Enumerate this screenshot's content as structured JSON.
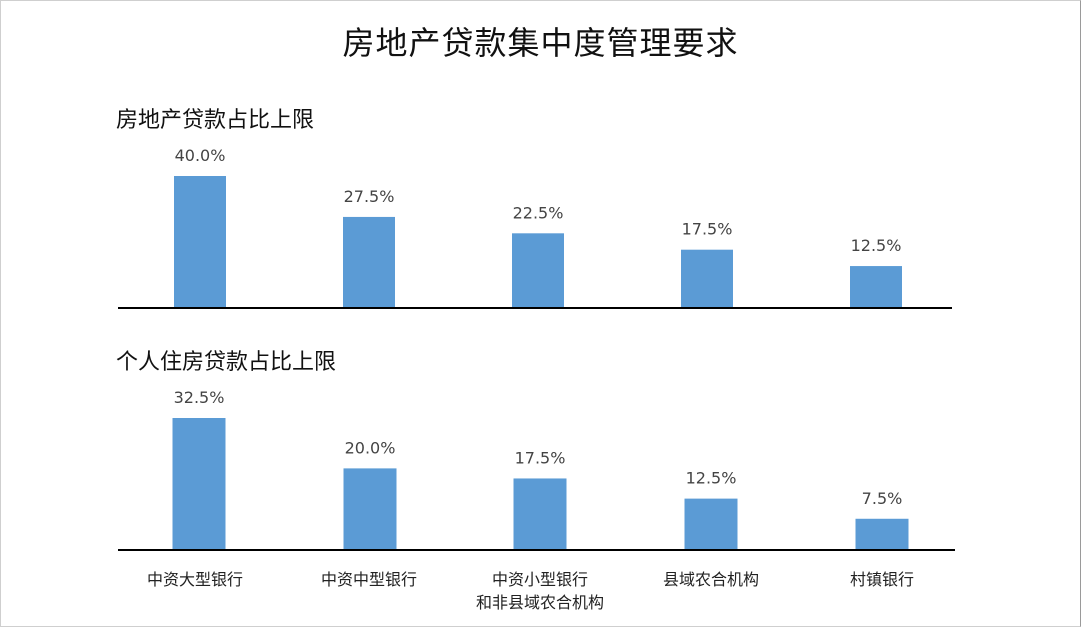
{
  "title": "房地产贷款集中度管理要求",
  "colors": {
    "bar": "#5b9bd5",
    "axis": "#000000",
    "label": "#444444"
  },
  "categories": [
    [
      "中资大型银行"
    ],
    [
      "中资中型银行"
    ],
    [
      "中资小型银行",
      "和非县域农合机构"
    ],
    [
      "县域农合机构"
    ],
    [
      "村镇银行"
    ]
  ],
  "chart_data": [
    {
      "type": "bar",
      "title": "房地产贷款占比上限",
      "categories": [
        "中资大型银行",
        "中资中型银行",
        "中资小型银行和非县域农合机构",
        "县域农合机构",
        "村镇银行"
      ],
      "values": [
        40.0,
        27.5,
        22.5,
        17.5,
        12.5
      ],
      "value_labels": [
        "40.0%",
        "27.5%",
        "22.5%",
        "17.5%",
        "12.5%"
      ],
      "ylim": [
        0,
        40
      ]
    },
    {
      "type": "bar",
      "title": "个人住房贷款占比上限",
      "categories": [
        "中资大型银行",
        "中资中型银行",
        "中资小型银行和非县域农合机构",
        "县域农合机构",
        "村镇银行"
      ],
      "values": [
        32.5,
        20.0,
        17.5,
        12.5,
        7.5
      ],
      "value_labels": [
        "32.5%",
        "20.0%",
        "17.5%",
        "12.5%",
        "7.5%"
      ],
      "ylim": [
        0,
        32.5
      ]
    }
  ]
}
